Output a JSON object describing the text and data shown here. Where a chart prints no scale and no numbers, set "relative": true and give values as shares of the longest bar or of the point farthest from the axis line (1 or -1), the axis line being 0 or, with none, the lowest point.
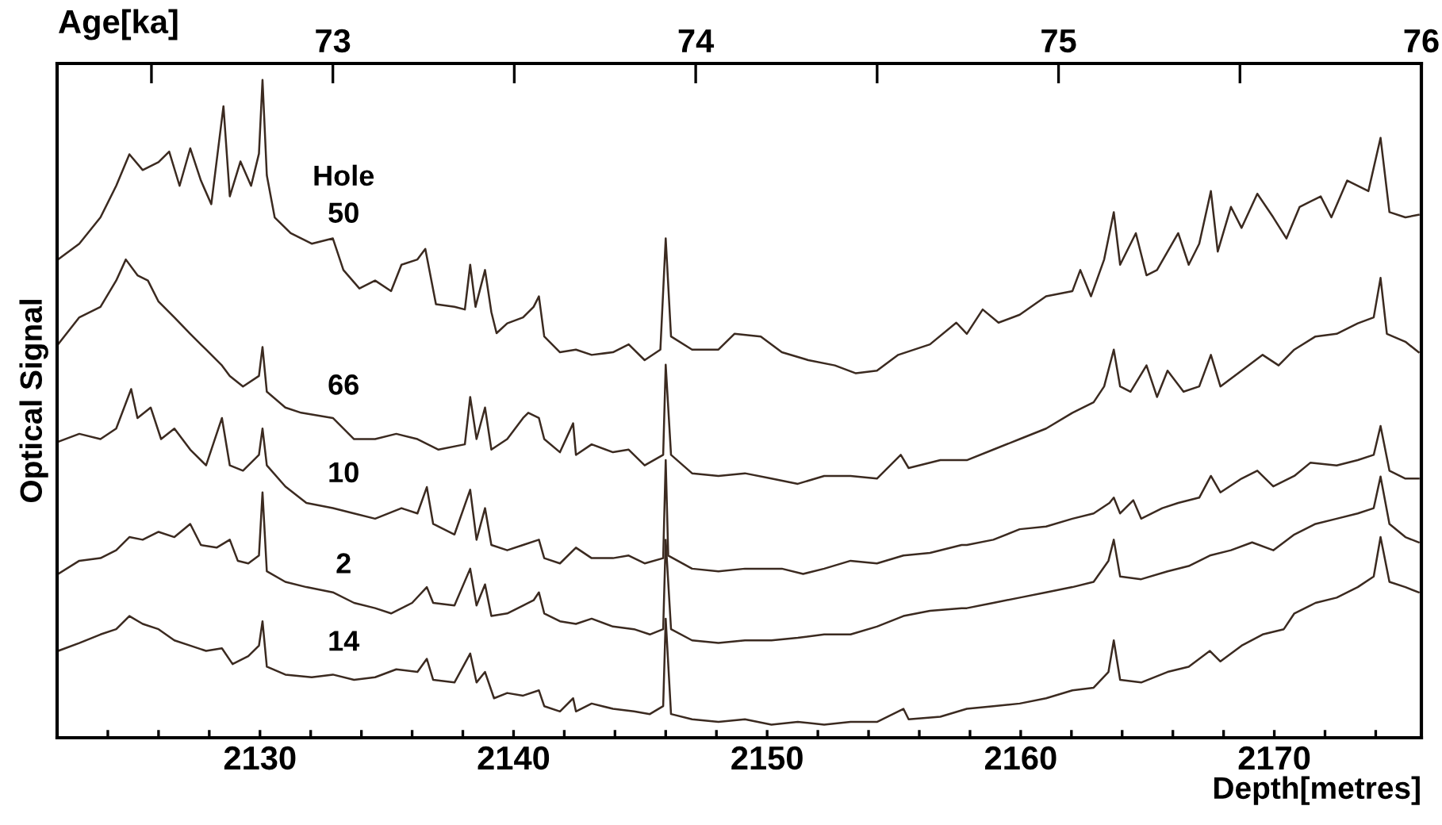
{
  "chart_data": {
    "type": "line",
    "relative": true,
    "ylabel": "Optical Signal",
    "xlabel": "Depth[metres]",
    "x2label": "Age[ka]",
    "annotations": [
      "Hole"
    ],
    "xlim": [
      2122,
      2175.8
    ],
    "xticks": [
      {
        "value": 2124,
        "label": null
      },
      {
        "value": 2126,
        "label": null
      },
      {
        "value": 2128,
        "label": null
      },
      2130,
      {
        "value": 2132,
        "label": null
      },
      {
        "value": 2134,
        "label": null
      },
      {
        "value": 2136,
        "label": null
      },
      {
        "value": 2138,
        "label": null
      },
      2140,
      {
        "value": 2142,
        "label": null
      },
      {
        "value": 2144,
        "label": null
      },
      {
        "value": 2146,
        "label": null
      },
      {
        "value": 2148,
        "label": null
      },
      2150,
      {
        "value": 2152,
        "label": null
      },
      {
        "value": 2154,
        "label": null
      },
      {
        "value": 2156,
        "label": null
      },
      {
        "value": 2158,
        "label": null
      },
      2160,
      {
        "value": 2162,
        "label": null
      },
      {
        "value": 2164,
        "label": null
      },
      {
        "value": 2166,
        "label": null
      },
      {
        "value": 2168,
        "label": null
      },
      2170,
      {
        "value": 2172,
        "label": null
      },
      {
        "value": 2174,
        "label": null
      }
    ],
    "x2lim": [
      72.24,
      76.0
    ],
    "x2ticks": [
      {
        "value": 72.5,
        "label": null
      },
      73,
      {
        "value": 73.5,
        "label": null
      },
      74,
      {
        "value": 74.5,
        "label": null
      },
      75,
      {
        "value": 75.5,
        "label": null
      },
      76
    ],
    "grid": false,
    "legend": false,
    "marker": "none",
    "line_style": "solid",
    "series": [
      {
        "name": "50",
        "color": "#3b2a20",
        "x": [
          2122.04,
          2122.875,
          2123.71,
          2124.33,
          2124.85,
          2125.375,
          2126.0,
          2126.42,
          2126.83,
          2127.25,
          2127.67,
          2128.08,
          2128.56,
          2128.81,
          2129.23,
          2129.65,
          2129.96,
          2130.1,
          2130.27,
          2130.58,
          2131.21,
          2132.04,
          2132.875,
          2133.29,
          2133.92,
          2134.54,
          2135.17,
          2135.58,
          2136.21,
          2136.52,
          2136.94,
          2137.67,
          2138.08,
          2138.29,
          2138.5,
          2138.875,
          2139.125,
          2139.33,
          2139.75,
          2140.375,
          2140.79,
          2141.0,
          2141.21,
          2141.83,
          2142.46,
          2143.08,
          2143.92,
          2144.54,
          2145.17,
          2145.79,
          2146.0,
          2146.21,
          2147.04,
          2148.08,
          2148.71,
          2149.75,
          2150.58,
          2151.625,
          2152.67,
          2153.5,
          2154.33,
          2155.17,
          2156.42,
          2157.46,
          2157.875,
          2158.5,
          2159.125,
          2159.96,
          2161.0,
          2162.04,
          2162.35,
          2162.77,
          2163.29,
          2163.67,
          2163.92,
          2164.54,
          2164.96,
          2165.375,
          2166.21,
          2166.625,
          2167.04,
          2167.5,
          2167.77,
          2168.29,
          2168.71,
          2169.33,
          2169.96,
          2170.48,
          2171.0,
          2171.83,
          2172.25,
          2172.875,
          2173.71,
          2174.19,
          2174.54,
          2175.17,
          2175.69
        ],
        "values": [
          0.727,
          0.751,
          0.791,
          0.839,
          0.887,
          0.863,
          0.875,
          0.891,
          0.839,
          0.896,
          0.847,
          0.811,
          0.96,
          0.823,
          0.876,
          0.839,
          0.888,
          1.0,
          0.855,
          0.791,
          0.767,
          0.751,
          0.759,
          0.711,
          0.683,
          0.695,
          0.679,
          0.719,
          0.727,
          0.743,
          0.659,
          0.655,
          0.651,
          0.719,
          0.655,
          0.711,
          0.647,
          0.615,
          0.63,
          0.639,
          0.655,
          0.671,
          0.61,
          0.586,
          0.59,
          0.582,
          0.586,
          0.598,
          0.574,
          0.59,
          0.759,
          0.61,
          0.59,
          0.59,
          0.614,
          0.61,
          0.586,
          0.574,
          0.566,
          0.554,
          0.558,
          0.582,
          0.598,
          0.631,
          0.614,
          0.651,
          0.631,
          0.643,
          0.671,
          0.679,
          0.711,
          0.671,
          0.727,
          0.799,
          0.719,
          0.767,
          0.703,
          0.711,
          0.767,
          0.719,
          0.751,
          0.831,
          0.739,
          0.807,
          0.775,
          0.827,
          0.791,
          0.759,
          0.807,
          0.823,
          0.791,
          0.847,
          0.831,
          0.912,
          0.799,
          0.791,
          0.795
        ]
      },
      {
        "name": "66",
        "color": "#3b2a20",
        "x": [
          2122.04,
          2122.875,
          2123.71,
          2124.33,
          2124.71,
          2125.17,
          2125.58,
          2126.0,
          2126.625,
          2127.25,
          2127.875,
          2128.5,
          2128.81,
          2129.33,
          2129.96,
          2130.1,
          2130.27,
          2131.0,
          2131.625,
          2132.875,
          2133.71,
          2134.54,
          2135.375,
          2136.21,
          2137.04,
          2138.08,
          2138.29,
          2138.54,
          2138.875,
          2139.125,
          2139.75,
          2140.375,
          2140.58,
          2141.0,
          2141.21,
          2141.83,
          2142.35,
          2142.46,
          2143.08,
          2143.92,
          2144.54,
          2145.17,
          2145.9,
          2146.0,
          2146.21,
          2147.04,
          2148.08,
          2149.125,
          2150.17,
          2151.21,
          2152.25,
          2153.29,
          2154.33,
          2155.27,
          2155.58,
          2156.83,
          2157.875,
          2158.92,
          2159.96,
          2161.0,
          2162.04,
          2162.875,
          2163.29,
          2163.67,
          2163.92,
          2164.33,
          2164.96,
          2165.375,
          2165.79,
          2166.42,
          2167.04,
          2167.5,
          2167.875,
          2168.71,
          2169.54,
          2170.17,
          2170.79,
          2171.625,
          2172.46,
          2173.29,
          2173.92,
          2174.19,
          2174.44,
          2175.17,
          2175.69
        ],
        "values": [
          0.598,
          0.639,
          0.655,
          0.695,
          0.727,
          0.703,
          0.695,
          0.663,
          0.639,
          0.614,
          0.59,
          0.566,
          0.55,
          0.534,
          0.55,
          0.594,
          0.526,
          0.502,
          0.494,
          0.486,
          0.454,
          0.454,
          0.462,
          0.454,
          0.438,
          0.446,
          0.518,
          0.454,
          0.502,
          0.438,
          0.454,
          0.486,
          0.494,
          0.486,
          0.454,
          0.434,
          0.478,
          0.43,
          0.446,
          0.434,
          0.438,
          0.414,
          0.43,
          0.567,
          0.43,
          0.402,
          0.398,
          0.402,
          0.394,
          0.386,
          0.398,
          0.398,
          0.394,
          0.43,
          0.41,
          0.422,
          0.422,
          0.438,
          0.454,
          0.47,
          0.494,
          0.51,
          0.534,
          0.59,
          0.534,
          0.526,
          0.566,
          0.518,
          0.558,
          0.526,
          0.534,
          0.582,
          0.534,
          0.558,
          0.582,
          0.566,
          0.59,
          0.61,
          0.614,
          0.63,
          0.639,
          0.699,
          0.614,
          0.602,
          0.586
        ]
      },
      {
        "name": "10",
        "color": "#3b2a20",
        "x": [
          2122.04,
          2122.875,
          2123.71,
          2124.33,
          2124.92,
          2125.17,
          2125.69,
          2126.1,
          2126.625,
          2127.25,
          2127.875,
          2128.5,
          2128.81,
          2129.33,
          2129.96,
          2130.1,
          2130.27,
          2131.0,
          2131.83,
          2132.875,
          2133.71,
          2134.54,
          2135.58,
          2136.21,
          2136.58,
          2136.83,
          2137.67,
          2138.29,
          2138.54,
          2138.875,
          2139.125,
          2139.75,
          2140.375,
          2141.0,
          2141.21,
          2141.83,
          2142.46,
          2143.08,
          2143.92,
          2144.54,
          2145.17,
          2145.9,
          2146.0,
          2146.1,
          2147.04,
          2148.08,
          2149.125,
          2150.58,
          2151.42,
          2152.25,
          2153.29,
          2154.33,
          2155.375,
          2156.42,
          2157.67,
          2157.875,
          2158.92,
          2159.96,
          2161.0,
          2162.04,
          2162.875,
          2163.5,
          2163.67,
          2163.92,
          2164.44,
          2164.75,
          2165.58,
          2166.21,
          2167.04,
          2167.5,
          2167.875,
          2168.71,
          2169.33,
          2169.96,
          2170.79,
          2171.42,
          2172.46,
          2173.29,
          2173.92,
          2174.19,
          2174.54,
          2175.17,
          2175.69
        ],
        "values": [
          0.45,
          0.462,
          0.454,
          0.47,
          0.53,
          0.486,
          0.502,
          0.454,
          0.47,
          0.438,
          0.414,
          0.486,
          0.414,
          0.406,
          0.43,
          0.47,
          0.414,
          0.382,
          0.357,
          0.349,
          0.341,
          0.333,
          0.349,
          0.341,
          0.381,
          0.325,
          0.309,
          0.377,
          0.301,
          0.349,
          0.293,
          0.285,
          0.293,
          0.301,
          0.273,
          0.265,
          0.289,
          0.273,
          0.273,
          0.277,
          0.265,
          0.273,
          0.422,
          0.277,
          0.257,
          0.253,
          0.257,
          0.257,
          0.249,
          0.257,
          0.269,
          0.265,
          0.277,
          0.281,
          0.293,
          0.293,
          0.301,
          0.317,
          0.321,
          0.333,
          0.341,
          0.357,
          0.365,
          0.341,
          0.361,
          0.333,
          0.349,
          0.357,
          0.365,
          0.398,
          0.373,
          0.394,
          0.406,
          0.382,
          0.398,
          0.418,
          0.414,
          0.422,
          0.43,
          0.474,
          0.406,
          0.394,
          0.394
        ]
      },
      {
        "name": "2",
        "color": "#3b2a20",
        "x": [
          2122.04,
          2122.875,
          2123.71,
          2124.33,
          2124.85,
          2125.375,
          2126.0,
          2126.625,
          2127.25,
          2127.67,
          2128.29,
          2128.81,
          2129.125,
          2129.54,
          2129.96,
          2130.1,
          2130.27,
          2131.0,
          2131.83,
          2132.875,
          2133.71,
          2134.54,
          2135.17,
          2136.0,
          2136.58,
          2136.83,
          2137.67,
          2138.29,
          2138.54,
          2138.875,
          2139.125,
          2139.75,
          2140.375,
          2140.79,
          2141.0,
          2141.21,
          2141.83,
          2142.46,
          2143.08,
          2143.92,
          2144.75,
          2145.375,
          2145.9,
          2146.0,
          2146.21,
          2147.04,
          2148.08,
          2149.125,
          2150.17,
          2151.21,
          2152.25,
          2153.29,
          2154.33,
          2155.375,
          2156.42,
          2157.67,
          2157.875,
          2158.92,
          2159.96,
          2161.0,
          2162.04,
          2162.875,
          2163.46,
          2163.67,
          2163.92,
          2164.75,
          2165.79,
          2166.625,
          2167.46,
          2168.29,
          2169.125,
          2169.96,
          2170.79,
          2171.625,
          2172.46,
          2173.29,
          2173.92,
          2174.19,
          2174.54,
          2175.17,
          2175.69
        ],
        "values": [
          0.249,
          0.269,
          0.273,
          0.285,
          0.305,
          0.301,
          0.313,
          0.305,
          0.325,
          0.293,
          0.289,
          0.301,
          0.269,
          0.265,
          0.277,
          0.373,
          0.253,
          0.237,
          0.229,
          0.221,
          0.205,
          0.197,
          0.189,
          0.205,
          0.229,
          0.205,
          0.201,
          0.257,
          0.201,
          0.233,
          0.185,
          0.189,
          0.201,
          0.209,
          0.221,
          0.189,
          0.177,
          0.173,
          0.181,
          0.169,
          0.165,
          0.157,
          0.165,
          0.301,
          0.165,
          0.148,
          0.144,
          0.148,
          0.148,
          0.152,
          0.157,
          0.157,
          0.169,
          0.185,
          0.193,
          0.197,
          0.197,
          0.205,
          0.213,
          0.221,
          0.229,
          0.237,
          0.269,
          0.301,
          0.245,
          0.241,
          0.253,
          0.261,
          0.277,
          0.285,
          0.297,
          0.285,
          0.309,
          0.325,
          0.333,
          0.341,
          0.349,
          0.397,
          0.325,
          0.305,
          0.297
        ]
      },
      {
        "name": "14",
        "color": "#3b2a20",
        "x": [
          2122.04,
          2122.875,
          2123.71,
          2124.33,
          2124.85,
          2125.375,
          2126.0,
          2126.625,
          2127.25,
          2127.875,
          2128.5,
          2128.92,
          2129.54,
          2129.96,
          2130.1,
          2130.27,
          2131.0,
          2132.04,
          2132.875,
          2133.71,
          2134.54,
          2135.375,
          2136.21,
          2136.58,
          2136.83,
          2137.67,
          2138.29,
          2138.54,
          2138.875,
          2139.23,
          2139.75,
          2140.375,
          2141.0,
          2141.21,
          2141.83,
          2142.35,
          2142.46,
          2143.08,
          2143.92,
          2144.75,
          2145.375,
          2145.9,
          2146.0,
          2146.21,
          2147.04,
          2148.08,
          2149.125,
          2150.17,
          2151.21,
          2152.25,
          2153.29,
          2154.33,
          2155.375,
          2155.58,
          2156.83,
          2157.875,
          2158.92,
          2159.96,
          2161.0,
          2162.04,
          2162.875,
          2163.46,
          2163.67,
          2163.92,
          2164.75,
          2165.79,
          2166.625,
          2167.46,
          2167.875,
          2168.71,
          2169.54,
          2170.375,
          2170.79,
          2171.625,
          2172.46,
          2173.29,
          2173.92,
          2174.19,
          2174.54,
          2175.17,
          2175.69
        ],
        "values": [
          0.132,
          0.144,
          0.157,
          0.165,
          0.185,
          0.173,
          0.165,
          0.148,
          0.14,
          0.132,
          0.136,
          0.112,
          0.124,
          0.14,
          0.177,
          0.108,
          0.096,
          0.092,
          0.096,
          0.088,
          0.092,
          0.104,
          0.1,
          0.12,
          0.088,
          0.084,
          0.128,
          0.084,
          0.1,
          0.06,
          0.068,
          0.064,
          0.072,
          0.048,
          0.04,
          0.06,
          0.04,
          0.052,
          0.044,
          0.04,
          0.036,
          0.048,
          0.181,
          0.036,
          0.028,
          0.024,
          0.028,
          0.02,
          0.024,
          0.02,
          0.024,
          0.024,
          0.044,
          0.028,
          0.032,
          0.044,
          0.048,
          0.052,
          0.06,
          0.072,
          0.076,
          0.1,
          0.148,
          0.088,
          0.084,
          0.1,
          0.108,
          0.132,
          0.116,
          0.14,
          0.157,
          0.165,
          0.189,
          0.205,
          0.213,
          0.229,
          0.245,
          0.305,
          0.237,
          0.229,
          0.221
        ]
      }
    ]
  }
}
